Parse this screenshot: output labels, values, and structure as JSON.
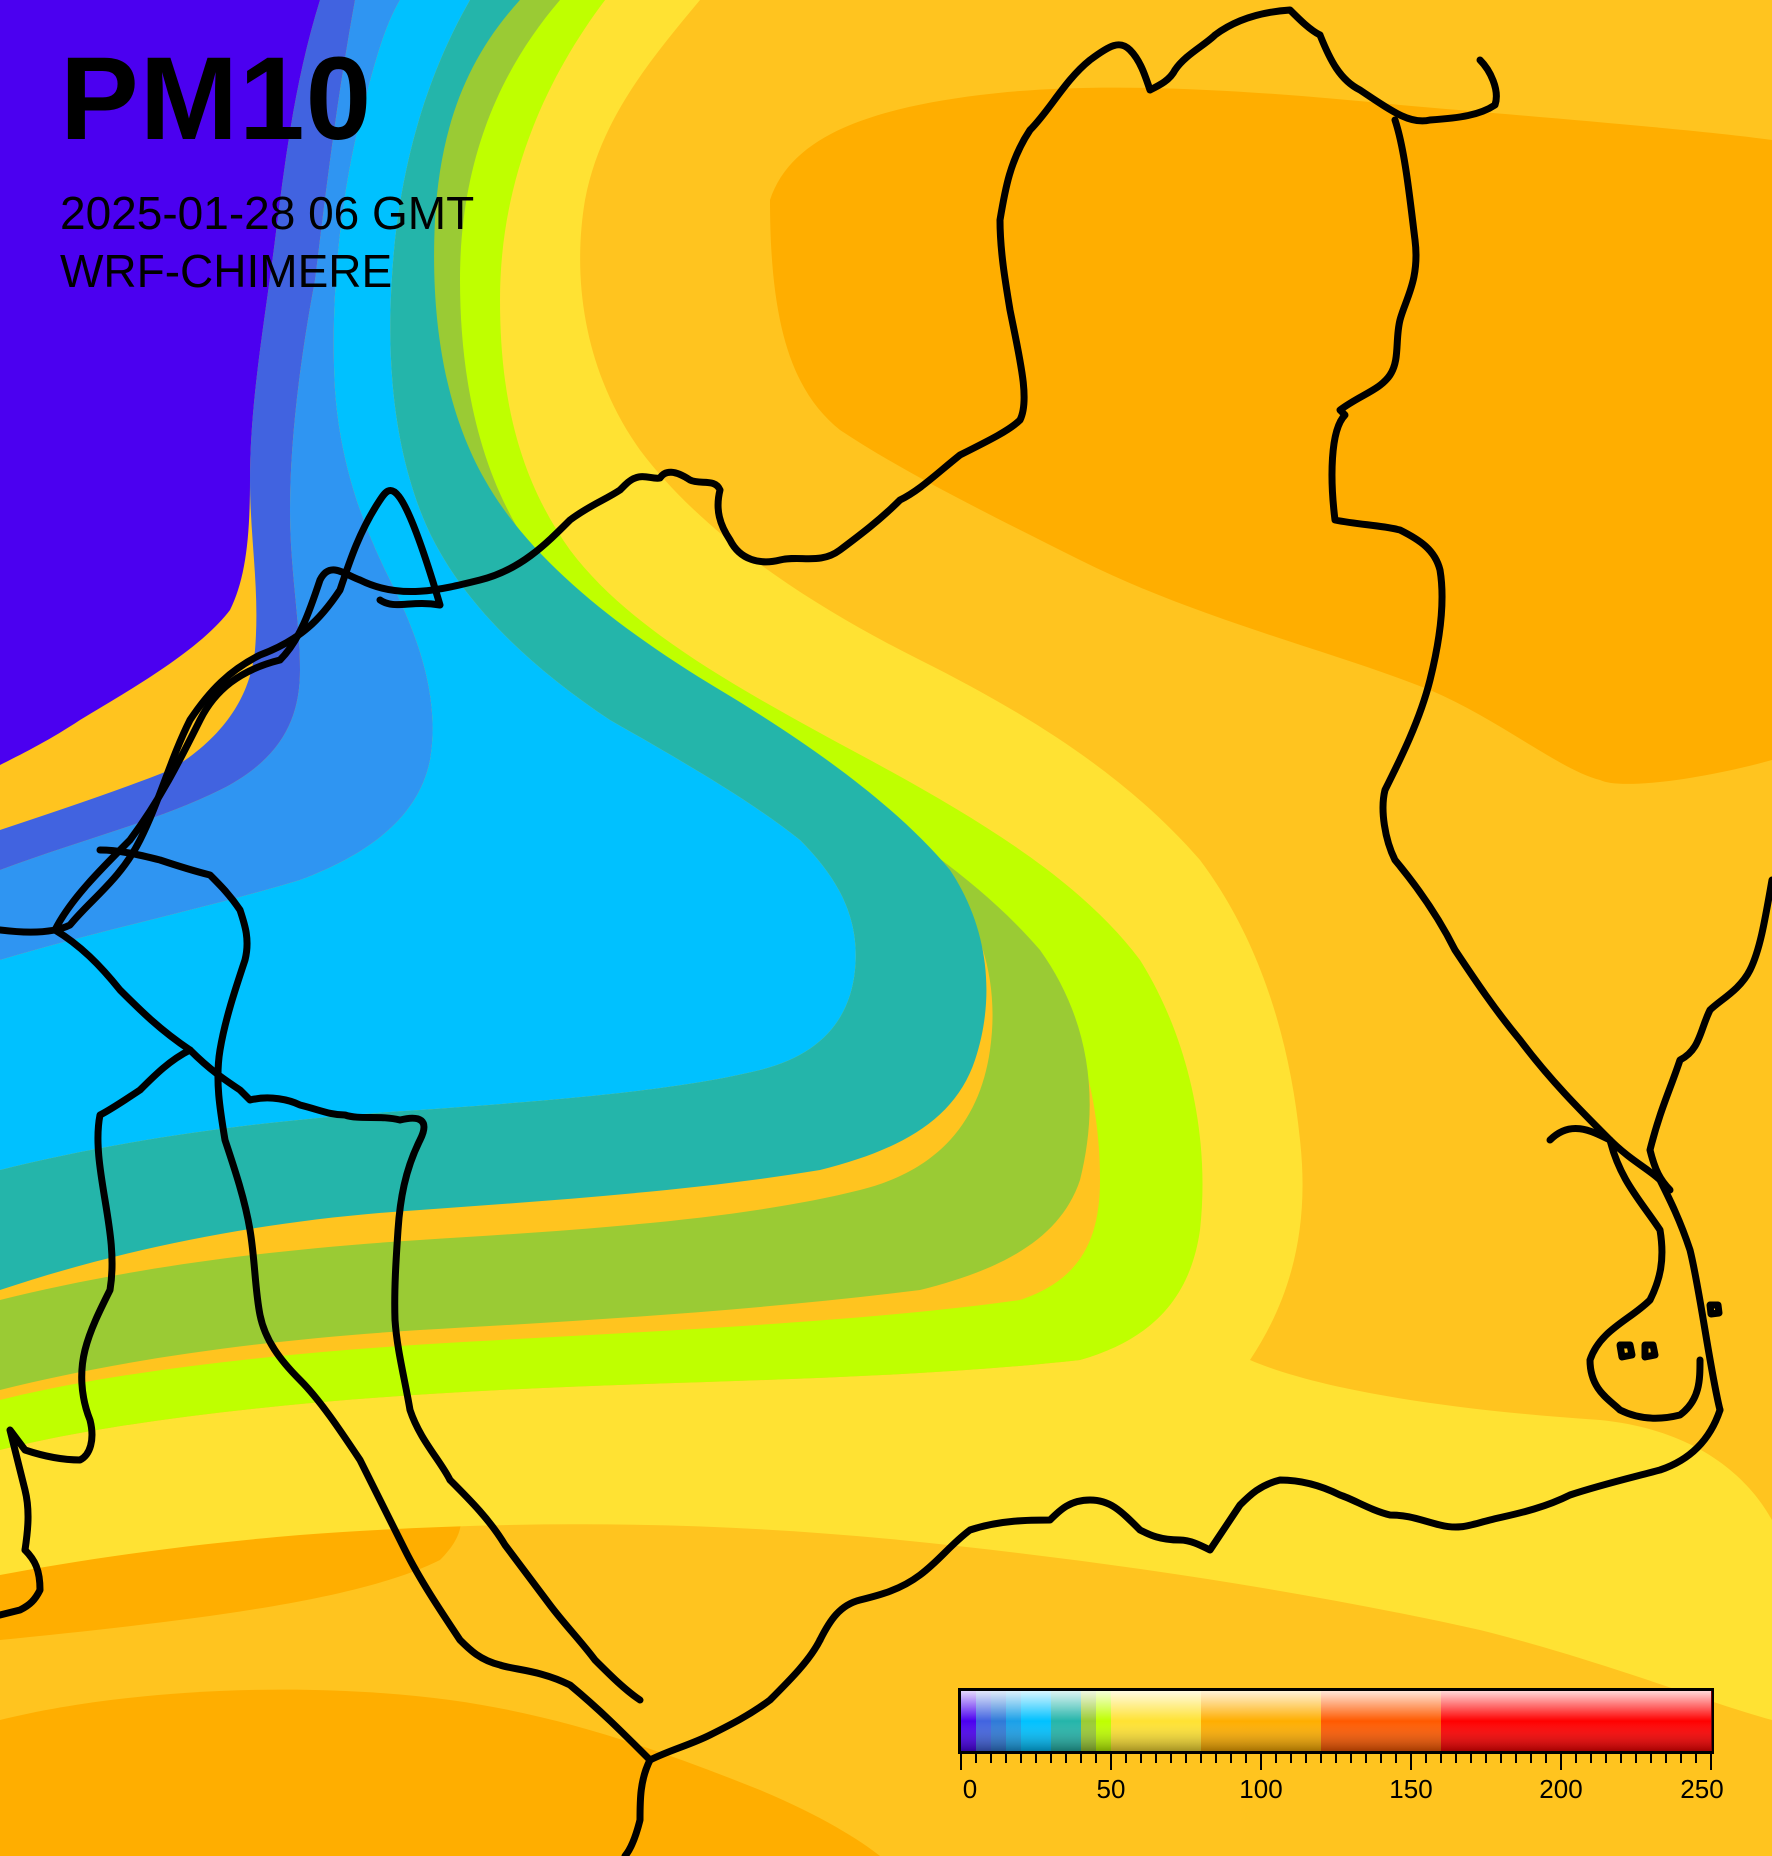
{
  "title": "PM10",
  "timestamp": "2025-01-28 06 GMT",
  "model": "WRF-CHIMERE",
  "colors": {
    "deep_violet": "#4b00f0",
    "royal_blue": "#4163e0",
    "azure": "#2f95f2",
    "cyan": "#00c1ff",
    "teal": "#24b5aa",
    "olive_green": "#9acb34",
    "chartreuse": "#bfff00",
    "yellow": "#ffe233",
    "gold": "#ffc41f",
    "orange": "#ffae00",
    "outline": "#000000"
  },
  "legend": {
    "min": 0,
    "max": 250,
    "tick_labels": [
      "0",
      "50",
      "100",
      "150",
      "200",
      "250"
    ],
    "tick_values": [
      0,
      50,
      100,
      150,
      200,
      250
    ],
    "bands": [
      {
        "from": 0,
        "to": 5,
        "color": "#4b00f0"
      },
      {
        "from": 5,
        "to": 10,
        "color": "#4163e0"
      },
      {
        "from": 10,
        "to": 15,
        "color": "#2f7ad8"
      },
      {
        "from": 15,
        "to": 20,
        "color": "#1aa0e8"
      },
      {
        "from": 20,
        "to": 25,
        "color": "#00c1ff"
      },
      {
        "from": 25,
        "to": 30,
        "color": "#00c1ff"
      },
      {
        "from": 30,
        "to": 35,
        "color": "#24b5aa"
      },
      {
        "from": 35,
        "to": 40,
        "color": "#24b5aa"
      },
      {
        "from": 40,
        "to": 45,
        "color": "#9acb34"
      },
      {
        "from": 45,
        "to": 50,
        "color": "#bfff00"
      },
      {
        "from": 50,
        "to": 80,
        "color": "#ffe233"
      },
      {
        "from": 80,
        "to": 120,
        "color": "#ffae00"
      },
      {
        "from": 120,
        "to": 160,
        "color": "#ff5a00"
      },
      {
        "from": 160,
        "to": 250,
        "color": "#ff0000"
      }
    ]
  }
}
